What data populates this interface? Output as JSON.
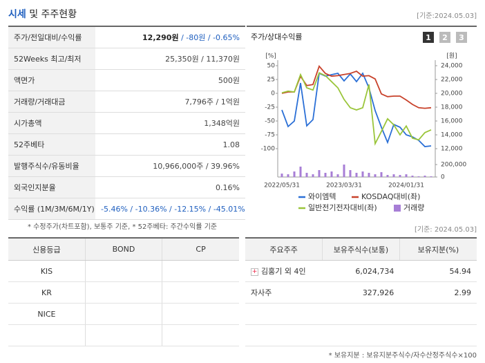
{
  "header": {
    "title_accent": "시세",
    "title_rest": "및 주주현황",
    "date": "[기준:2024.05.03]"
  },
  "price_table": {
    "rows": [
      [
        "주가/전일대비/수익률",
        "12,290원",
        "/ -80원 / -0.65%"
      ],
      [
        "52Weeks 최고/최저",
        "25,350원 / 11,370원"
      ],
      [
        "액면가",
        "500원"
      ],
      [
        "거래량/거래대금",
        "7,796주 / 1억원"
      ],
      [
        "시가총액",
        "1,348억원"
      ],
      [
        "52주베타",
        "1.08"
      ],
      [
        "발행주식수/유동비율",
        "10,966,000주 / 39.96%"
      ],
      [
        "외국인지분율",
        "0.16%"
      ],
      [
        "수익률 (1M/3M/6M/1Y)",
        "-5.46% / -10.36% / -12.15% / -45.01%"
      ]
    ]
  },
  "price_note": "* 수정주가(차트포함), 보통주 기준, * 52주베타: 주간수익률 기준",
  "chart_data": {
    "type": "line",
    "title": "주가/상대수익률",
    "tabs": [
      "1",
      "2",
      "3"
    ],
    "y_unit": "[%]",
    "y2_unit": "[원]",
    "categories": [
      "2022/05/31",
      null,
      null,
      null,
      null,
      null,
      null,
      null,
      null,
      null,
      "2023/03/31",
      null,
      null,
      null,
      null,
      null,
      null,
      null,
      null,
      null,
      "2024/01/31",
      null,
      null,
      null,
      null
    ],
    "ylim": [
      -100,
      50
    ],
    "yticks": [
      50,
      25,
      0,
      -25,
      -50,
      -75,
      -100
    ],
    "y2lim": [
      12000,
      24000
    ],
    "y2ticks": [
      {
        "value": 24000,
        "label": "24,000"
      },
      {
        "value": 22000,
        "label": "22,000"
      },
      {
        "value": 20000,
        "label": "20,000"
      },
      {
        "value": 18000,
        "label": "18,000"
      },
      {
        "value": 16000,
        "label": "16,000"
      },
      {
        "value": 14000,
        "label": "14,000"
      },
      {
        "value": 12000,
        "label": "12,000"
      }
    ],
    "volume_lim": [
      0,
      200000
    ],
    "volume_ticks": [
      {
        "value": 200000,
        "label": "200,000"
      },
      0
    ],
    "series": [
      {
        "name": "와이엠텍",
        "color": "#2a6fd6",
        "axis": "y2",
        "values": [
          17600,
          15200,
          16000,
          21500,
          15300,
          16200,
          22900,
          22500,
          22700,
          22900,
          21800,
          22800,
          21700,
          22900,
          20800,
          17500,
          15100,
          12900,
          15500,
          15100,
          14000,
          13700,
          13200,
          12300,
          12400
        ]
      },
      {
        "name": "KOSDAQ대비(좌)",
        "color": "#c8412a",
        "axis": "y",
        "values": [
          0,
          2.5,
          2.5,
          31,
          14,
          16,
          49,
          36,
          31,
          32,
          34,
          36,
          40,
          31,
          32,
          26,
          -1,
          -6,
          -5,
          -5,
          -12,
          -20,
          -26,
          -27,
          -26
        ]
      },
      {
        "name": "일반전기전자대비(좌)",
        "color": "#9ac53a",
        "axis": "y",
        "values": [
          1,
          4,
          2.5,
          34,
          10,
          6,
          37,
          32,
          21,
          10,
          -11,
          -26,
          -30,
          -26,
          16,
          -91,
          -69,
          -46,
          -57,
          -75,
          -59,
          -81,
          -84,
          -71,
          -66
        ]
      },
      {
        "name": "거래량",
        "color": "#a77ed6",
        "axis": "volume",
        "type": "bar",
        "values": [
          55000,
          44000,
          89000,
          167000,
          67000,
          44000,
          111000,
          67000,
          89000,
          44000,
          200000,
          111000,
          67000,
          89000,
          67000,
          44000,
          78000,
          33000,
          44000,
          33000,
          44000,
          22000,
          11000,
          22000,
          11000
        ]
      }
    ]
  },
  "holder_date": "[기준: 2024.05.03]",
  "credit_table": {
    "headers": [
      "신용등급",
      "BOND",
      "CP"
    ],
    "rows": [
      [
        "KIS"
      ],
      [
        "KR"
      ],
      [
        "NICE"
      ]
    ]
  },
  "holder_table": {
    "headers": [
      "주요주주",
      "보유주식수(보통)",
      "보유지분(%)"
    ],
    "rows": [
      [
        "김홍기 외 4인",
        "6,024,734",
        "54.94"
      ],
      [
        "자사주",
        "327,926",
        "2.99"
      ]
    ]
  },
  "holder_note": "* 보유지분 : 보유지분주식수/자수산정주식수×100"
}
